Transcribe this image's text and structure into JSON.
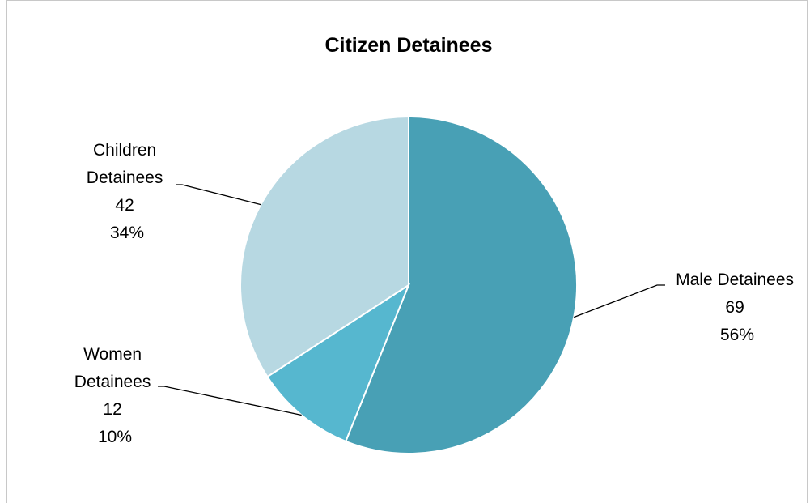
{
  "chart_data": {
    "type": "pie",
    "title": "Citizen Detainees",
    "slices": [
      {
        "name": "Male Detainees",
        "value": 69,
        "percent": "56%",
        "color": "#48a0b5"
      },
      {
        "name": "Women Detainees",
        "value": 12,
        "percent": "10%",
        "color": "#56b7cf"
      },
      {
        "name": "Children Detainees",
        "value": 42,
        "percent": "34%",
        "color": "#b7d8e2"
      }
    ],
    "label_lines": {
      "male": [
        "Male Detainees",
        "69",
        "56%"
      ],
      "women": [
        "Women",
        "Detainees",
        "12",
        "10%"
      ],
      "children": [
        "Children",
        "Detainees",
        "42",
        "34%"
      ]
    }
  }
}
